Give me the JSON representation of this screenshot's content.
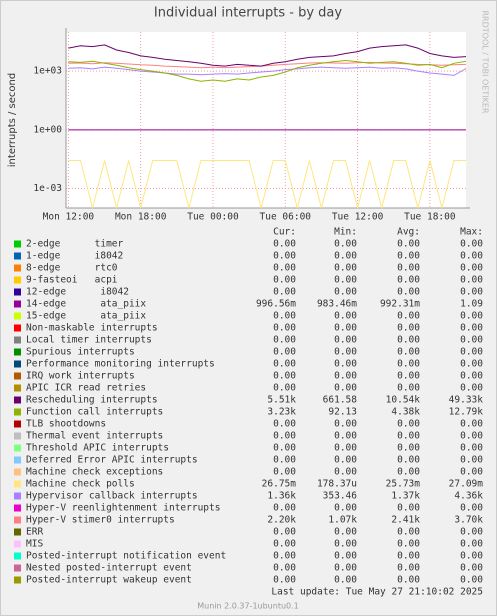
{
  "chart_data": {
    "type": "line",
    "title": "Individual interrupts - by day",
    "y_label": "interrupts / second",
    "side_label": "RRDTOOL / TOBI OETIKER",
    "ylog": true,
    "grid": true,
    "ylim": [
      0.0001,
      100000
    ],
    "yticks": [
      {
        "value": 0.001,
        "label": "1e-03"
      },
      {
        "value": 1,
        "label": "1e+00"
      },
      {
        "value": 1000,
        "label": "1e+03"
      }
    ],
    "xlim": [
      11.8,
      45
    ],
    "xticks": [
      {
        "value": 12,
        "label": "Mon 12:00"
      },
      {
        "value": 18,
        "label": "Mon 18:00"
      },
      {
        "value": 24,
        "label": "Tue 00:00"
      },
      {
        "value": 30,
        "label": "Tue 06:00"
      },
      {
        "value": 36,
        "label": "Tue 12:00"
      },
      {
        "value": 42,
        "label": "Tue 18:00"
      }
    ],
    "x": [
      12,
      13,
      14,
      15,
      16,
      17,
      18,
      19,
      20,
      21,
      22,
      23,
      24,
      25,
      26,
      27,
      28,
      29,
      30,
      31,
      32,
      33,
      34,
      35,
      36,
      37,
      38,
      39,
      40,
      41,
      42,
      43,
      44,
      45
    ],
    "series": [
      {
        "name": "Machine check polls",
        "color": "#ffe680",
        "values": [
          0.027,
          0.027,
          0.0001,
          0.027,
          0.0001,
          0.027,
          0.0001,
          0.027,
          0.027,
          0.027,
          0.0001,
          0.027,
          0.027,
          0.027,
          0.027,
          0.027,
          0.0001,
          0.027,
          0.027,
          0.0001,
          0.027,
          0.0001,
          0.027,
          0.027,
          0.0001,
          0.027,
          0.0001,
          0.027,
          0.027,
          0.0001,
          0.027,
          0.0001,
          0.027,
          0.027
        ]
      },
      {
        "name": "14-edge      ata_piix",
        "color": "#990099",
        "values": [
          0.99,
          0.99,
          0.99,
          0.99,
          0.99,
          0.99,
          0.99,
          0.99,
          0.99,
          0.99,
          0.99,
          0.99,
          0.99,
          0.99,
          0.99,
          0.99,
          0.99,
          0.99,
          0.99,
          0.99,
          0.99,
          0.99,
          0.99,
          0.99,
          0.99,
          0.99,
          0.99,
          0.99,
          0.99,
          0.99,
          0.99,
          0.99,
          0.99,
          0.99
        ]
      },
      {
        "name": "Hypervisor callback interrupts",
        "color": "#aa80ff",
        "values": [
          1400,
          1500,
          1300,
          1600,
          1400,
          1200,
          1000,
          900,
          800,
          700,
          700,
          650,
          700,
          750,
          700,
          800,
          900,
          1000,
          1200,
          1300,
          1500,
          1600,
          1500,
          1400,
          1500,
          1600,
          1400,
          1500,
          1300,
          1000,
          800,
          700,
          600,
          1360
        ]
      },
      {
        "name": "Hyper-V stimer0 interrupts",
        "color": "#ff8080",
        "values": [
          2500,
          2600,
          2400,
          2700,
          2500,
          2300,
          2100,
          2000,
          1800,
          1700,
          1600,
          1500,
          1600,
          1500,
          1600,
          1700,
          1800,
          2000,
          2200,
          2400,
          2600,
          2700,
          2600,
          2500,
          2700,
          2800,
          2600,
          2500,
          2400,
          2200,
          2100,
          2000,
          2100,
          2200
        ]
      },
      {
        "name": "Function call interrupts",
        "color": "#8fb300",
        "values": [
          3000,
          2800,
          3200,
          2500,
          2000,
          1500,
          1200,
          1000,
          800,
          600,
          400,
          300,
          350,
          300,
          400,
          350,
          500,
          600,
          900,
          1500,
          2000,
          2500,
          3000,
          3500,
          3000,
          2500,
          2800,
          3000,
          2500,
          2000,
          2200,
          1500,
          2500,
          3230
        ]
      },
      {
        "name": "Rescheduling interrupts",
        "color": "#6b006b",
        "values": [
          15000,
          20000,
          18000,
          22000,
          12000,
          9000,
          6000,
          5000,
          4000,
          3500,
          3000,
          2500,
          2000,
          1800,
          2200,
          2000,
          1800,
          2500,
          3000,
          4000,
          5000,
          5500,
          6000,
          8000,
          10000,
          15000,
          18000,
          20000,
          22000,
          15000,
          8000,
          6000,
          5000,
          5510
        ]
      }
    ]
  },
  "legend_table": {
    "columns": [
      "Cur:",
      "Min:",
      "Avg:",
      "Max:"
    ],
    "rows": [
      {
        "name": "2-edge      timer",
        "color": "#00cc00",
        "cells": [
          "0.00",
          "0.00",
          "0.00",
          "0.00"
        ]
      },
      {
        "name": "1-edge      i8042",
        "color": "#0066b3",
        "cells": [
          "0.00",
          "0.00",
          "0.00",
          "0.00"
        ]
      },
      {
        "name": "8-edge      rtc0",
        "color": "#ff8000",
        "cells": [
          "0.00",
          "0.00",
          "0.00",
          "0.00"
        ]
      },
      {
        "name": "9-fasteoi   acpi",
        "color": "#ffcc00",
        "cells": [
          "0.00",
          "0.00",
          "0.00",
          "0.00"
        ]
      },
      {
        "name": "12-edge      i8042",
        "color": "#330099",
        "cells": [
          "0.00",
          "0.00",
          "0.00",
          "0.00"
        ]
      },
      {
        "name": "14-edge      ata_piix",
        "color": "#990099",
        "cells": [
          "996.56m",
          "983.46m",
          "992.31m",
          "1.09"
        ]
      },
      {
        "name": "15-edge      ata_piix",
        "color": "#ccff00",
        "cells": [
          "0.00",
          "0.00",
          "0.00",
          "0.00"
        ]
      },
      {
        "name": "Non-maskable interrupts",
        "color": "#ff0000",
        "cells": [
          "0.00",
          "0.00",
          "0.00",
          "0.00"
        ]
      },
      {
        "name": "Local timer interrupts",
        "color": "#808080",
        "cells": [
          "0.00",
          "0.00",
          "0.00",
          "0.00"
        ]
      },
      {
        "name": "Spurious interrupts",
        "color": "#008f00",
        "cells": [
          "0.00",
          "0.00",
          "0.00",
          "0.00"
        ]
      },
      {
        "name": "Performance monitoring interrupts",
        "color": "#00487d",
        "cells": [
          "0.00",
          "0.00",
          "0.00",
          "0.00"
        ]
      },
      {
        "name": "IRQ work interrupts",
        "color": "#b35a00",
        "cells": [
          "0.00",
          "0.00",
          "0.00",
          "0.00"
        ]
      },
      {
        "name": "APIC ICR read retries",
        "color": "#b38f00",
        "cells": [
          "0.00",
          "0.00",
          "0.00",
          "0.00"
        ]
      },
      {
        "name": "Rescheduling interrupts",
        "color": "#6b006b",
        "cells": [
          "5.51k",
          "661.58",
          "10.54k",
          "49.33k"
        ]
      },
      {
        "name": "Function call interrupts",
        "color": "#8fb300",
        "cells": [
          "3.23k",
          "92.13",
          "4.38k",
          "12.79k"
        ]
      },
      {
        "name": "TLB shootdowns",
        "color": "#b30000",
        "cells": [
          "0.00",
          "0.00",
          "0.00",
          "0.00"
        ]
      },
      {
        "name": "Thermal event interrupts",
        "color": "#bebebe",
        "cells": [
          "0.00",
          "0.00",
          "0.00",
          "0.00"
        ]
      },
      {
        "name": "Threshold APIC interrupts",
        "color": "#80ff80",
        "cells": [
          "0.00",
          "0.00",
          "0.00",
          "0.00"
        ]
      },
      {
        "name": "Deferred Error APIC interrupts",
        "color": "#80c9ff",
        "cells": [
          "0.00",
          "0.00",
          "0.00",
          "0.00"
        ]
      },
      {
        "name": "Machine check exceptions",
        "color": "#ffc080",
        "cells": [
          "0.00",
          "0.00",
          "0.00",
          "0.00"
        ]
      },
      {
        "name": "Machine check polls",
        "color": "#ffe680",
        "cells": [
          "26.75m",
          "178.37u",
          "25.73m",
          "27.09m"
        ]
      },
      {
        "name": "Hypervisor callback interrupts",
        "color": "#aa80ff",
        "cells": [
          "1.36k",
          "353.46",
          "1.37k",
          "4.36k"
        ]
      },
      {
        "name": "Hyper-V reenlightenment interrupts",
        "color": "#ee00cc",
        "cells": [
          "0.00",
          "0.00",
          "0.00",
          "0.00"
        ]
      },
      {
        "name": "Hyper-V stimer0 interrupts",
        "color": "#ff8080",
        "cells": [
          "2.20k",
          "1.07k",
          "2.41k",
          "3.70k"
        ]
      },
      {
        "name": "ERR",
        "color": "#666600",
        "cells": [
          "0.00",
          "0.00",
          "0.00",
          "0.00"
        ]
      },
      {
        "name": "MIS",
        "color": "#ffbfff",
        "cells": [
          "0.00",
          "0.00",
          "0.00",
          "0.00"
        ]
      },
      {
        "name": "Posted-interrupt notification event",
        "color": "#00ffcc",
        "cells": [
          "0.00",
          "0.00",
          "0.00",
          "0.00"
        ]
      },
      {
        "name": "Nested posted-interrupt event",
        "color": "#cc6699",
        "cells": [
          "0.00",
          "0.00",
          "0.00",
          "0.00"
        ]
      },
      {
        "name": "Posted-interrupt wakeup event",
        "color": "#999900",
        "cells": [
          "0.00",
          "0.00",
          "0.00",
          "0.00"
        ]
      }
    ]
  },
  "footer": {
    "last_update": "Last update: Tue May 27 21:10:02 2025",
    "version": "Munin 2.0.37-1ubuntu0.1"
  }
}
